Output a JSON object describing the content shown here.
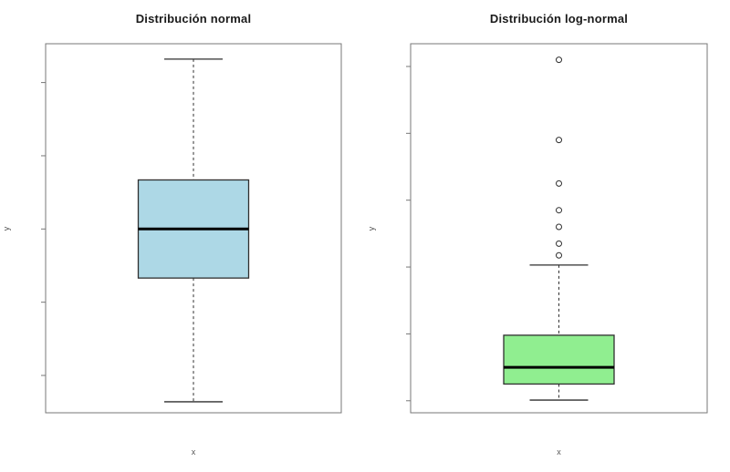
{
  "figure": {
    "background": "#ffffff",
    "frame_color": "#777777",
    "element_color": "#2f2f2f",
    "median_color": "#000000"
  },
  "chart_data": [
    {
      "type": "boxplot",
      "title": "Distribución normal",
      "xlabel": "x",
      "ylabel": "y",
      "box_color": "#ADD8E6",
      "border_color": "#2f2f2f",
      "median_color": "#000000",
      "ylim": [
        -2.51,
        2.53
      ],
      "yticks": [
        -2,
        -1,
        0,
        1,
        2
      ],
      "ytick_labels_visible": false,
      "grid": false,
      "legend": false,
      "stats": {
        "whisker_low": -2.36,
        "q1": -0.67,
        "median": 0.0,
        "q3": 0.67,
        "whisker_high": 2.32
      },
      "outliers": []
    },
    {
      "type": "boxplot",
      "title": "Distribución log-normal",
      "xlabel": "x",
      "ylabel": "y",
      "box_color": "#90EE90",
      "border_color": "#2f2f2f",
      "median_color": "#000000",
      "ylim": [
        -0.36,
        10.68
      ],
      "yticks": [
        0,
        2,
        4,
        6,
        8,
        10
      ],
      "ytick_labels_visible": false,
      "grid": false,
      "legend": false,
      "stats": {
        "whisker_low": 0.02,
        "q1": 0.5,
        "median": 1.0,
        "q3": 1.96,
        "whisker_high": 4.06
      },
      "outliers": [
        4.35,
        4.7,
        5.2,
        5.7,
        6.5,
        7.8,
        10.2
      ]
    }
  ]
}
